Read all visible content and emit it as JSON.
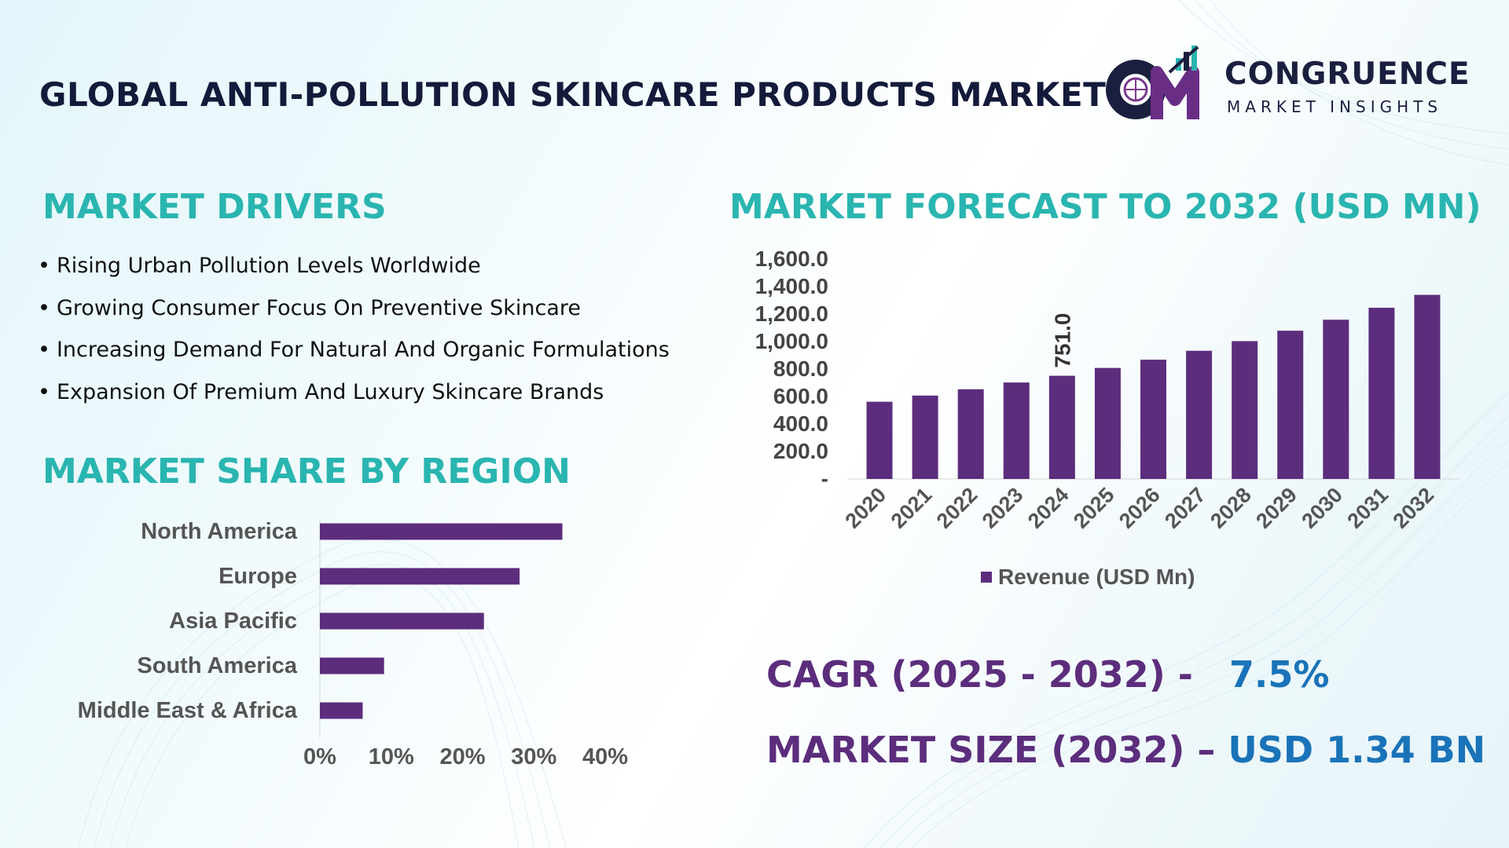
{
  "header": {
    "title": "GLOBAL ANTI-POLLUTION SKINCARE PRODUCTS MARKET",
    "logo_line1": "CONGRUENCE",
    "logo_line2": "MARKET INSIGHTS"
  },
  "drivers": {
    "title": "MARKET DRIVERS",
    "items": [
      "Rising Urban Pollution Levels Worldwide",
      "Growing Consumer Focus On Preventive Skincare",
      "Increasing Demand For Natural And Organic Formulations",
      "Expansion Of Premium And Luxury Skincare Brands"
    ]
  },
  "region": {
    "title": "MARKET SHARE BY REGION"
  },
  "forecast": {
    "title": "MARKET FORECAST TO 2032 (USD MN)"
  },
  "kpis": {
    "cagr_label": "CAGR (2025 - 2032) -",
    "cagr_value": "7.5%",
    "size_label": "MARKET SIZE (2032) –",
    "size_value": "USD 1.34 BN"
  },
  "colors": {
    "bar": "#5c2d7c",
    "accent": "#2ab5b0",
    "kpi_value": "#1a73b8"
  },
  "chart_data": [
    {
      "type": "bar",
      "orientation": "horizontal",
      "title": "MARKET SHARE BY REGION",
      "categories": [
        "North America",
        "Europe",
        "Asia Pacific",
        "South America",
        "Middle East & Africa"
      ],
      "values": [
        34,
        28,
        23,
        9,
        6
      ],
      "unit": "%",
      "xlim": [
        0,
        40
      ],
      "x_ticks": [
        "0%",
        "10%",
        "20%",
        "30%",
        "40%"
      ]
    },
    {
      "type": "bar",
      "title": "MARKET FORECAST TO 2032 (USD MN)",
      "categories": [
        "2020",
        "2021",
        "2022",
        "2023",
        "2024",
        "2025",
        "2026",
        "2027",
        "2028",
        "2029",
        "2030",
        "2031",
        "2032"
      ],
      "series": [
        {
          "name": "Revenue (USD Mn)",
          "values": [
            562,
            607,
            653,
            702,
            751,
            808,
            868,
            933,
            1003,
            1079,
            1159,
            1246,
            1340
          ]
        }
      ],
      "ylim": [
        0,
        1600
      ],
      "y_ticks": [
        "-",
        "200.0",
        "400.0",
        "600.0",
        "800.0",
        "1,000.0",
        "1,200.0",
        "1,400.0",
        "1,600.0"
      ],
      "data_label": {
        "category": "2024",
        "text": "751.0"
      },
      "legend": "bottom"
    }
  ]
}
